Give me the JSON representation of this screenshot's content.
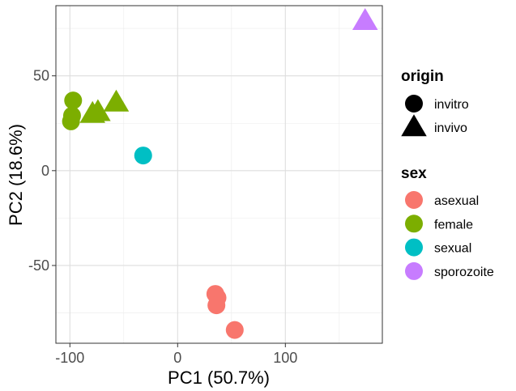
{
  "chart_data": {
    "type": "scatter",
    "title": "",
    "xlabel": "PC1 (50.7%)",
    "ylabel": "PC2 (18.6%)",
    "xlim": [
      -113,
      190
    ],
    "ylim": [
      -91,
      87
    ],
    "x_ticks": [
      -100,
      0,
      100
    ],
    "x_tick_labels": [
      "-100",
      "0",
      "100"
    ],
    "y_ticks": [
      -50,
      0,
      50
    ],
    "y_tick_labels": [
      "-50",
      "0",
      "50"
    ],
    "grid": true,
    "legend_position": "right",
    "legend": {
      "shape_title": "origin",
      "shape_entries": [
        {
          "label": "invitro",
          "shape": "circle"
        },
        {
          "label": "invivo",
          "shape": "triangle"
        }
      ],
      "color_title": "sex",
      "color_entries": [
        {
          "label": "asexual",
          "color": "#F8766D"
        },
        {
          "label": "female",
          "color": "#7CAE00"
        },
        {
          "label": "sexual",
          "color": "#00BFC4"
        },
        {
          "label": "sporozoite",
          "color": "#C77CFF"
        }
      ]
    },
    "points": [
      {
        "x": -97,
        "y": 37,
        "sex": "female",
        "origin": "invitro"
      },
      {
        "x": -98,
        "y": 29,
        "sex": "female",
        "origin": "invitro"
      },
      {
        "x": -99,
        "y": 26,
        "sex": "female",
        "origin": "invitro"
      },
      {
        "x": -57,
        "y": 36,
        "sex": "female",
        "origin": "invivo"
      },
      {
        "x": -74,
        "y": 31,
        "sex": "female",
        "origin": "invivo"
      },
      {
        "x": -79,
        "y": 30,
        "sex": "female",
        "origin": "invivo"
      },
      {
        "x": -32,
        "y": 8,
        "sex": "sexual",
        "origin": "invitro"
      },
      {
        "x": 35,
        "y": -65,
        "sex": "asexual",
        "origin": "invitro"
      },
      {
        "x": 37,
        "y": -67,
        "sex": "asexual",
        "origin": "invitro"
      },
      {
        "x": 36,
        "y": -71,
        "sex": "asexual",
        "origin": "invitro"
      },
      {
        "x": 53,
        "y": -84,
        "sex": "asexual",
        "origin": "invitro"
      },
      {
        "x": 174,
        "y": 79,
        "sex": "sporozoite",
        "origin": "invivo"
      }
    ]
  }
}
